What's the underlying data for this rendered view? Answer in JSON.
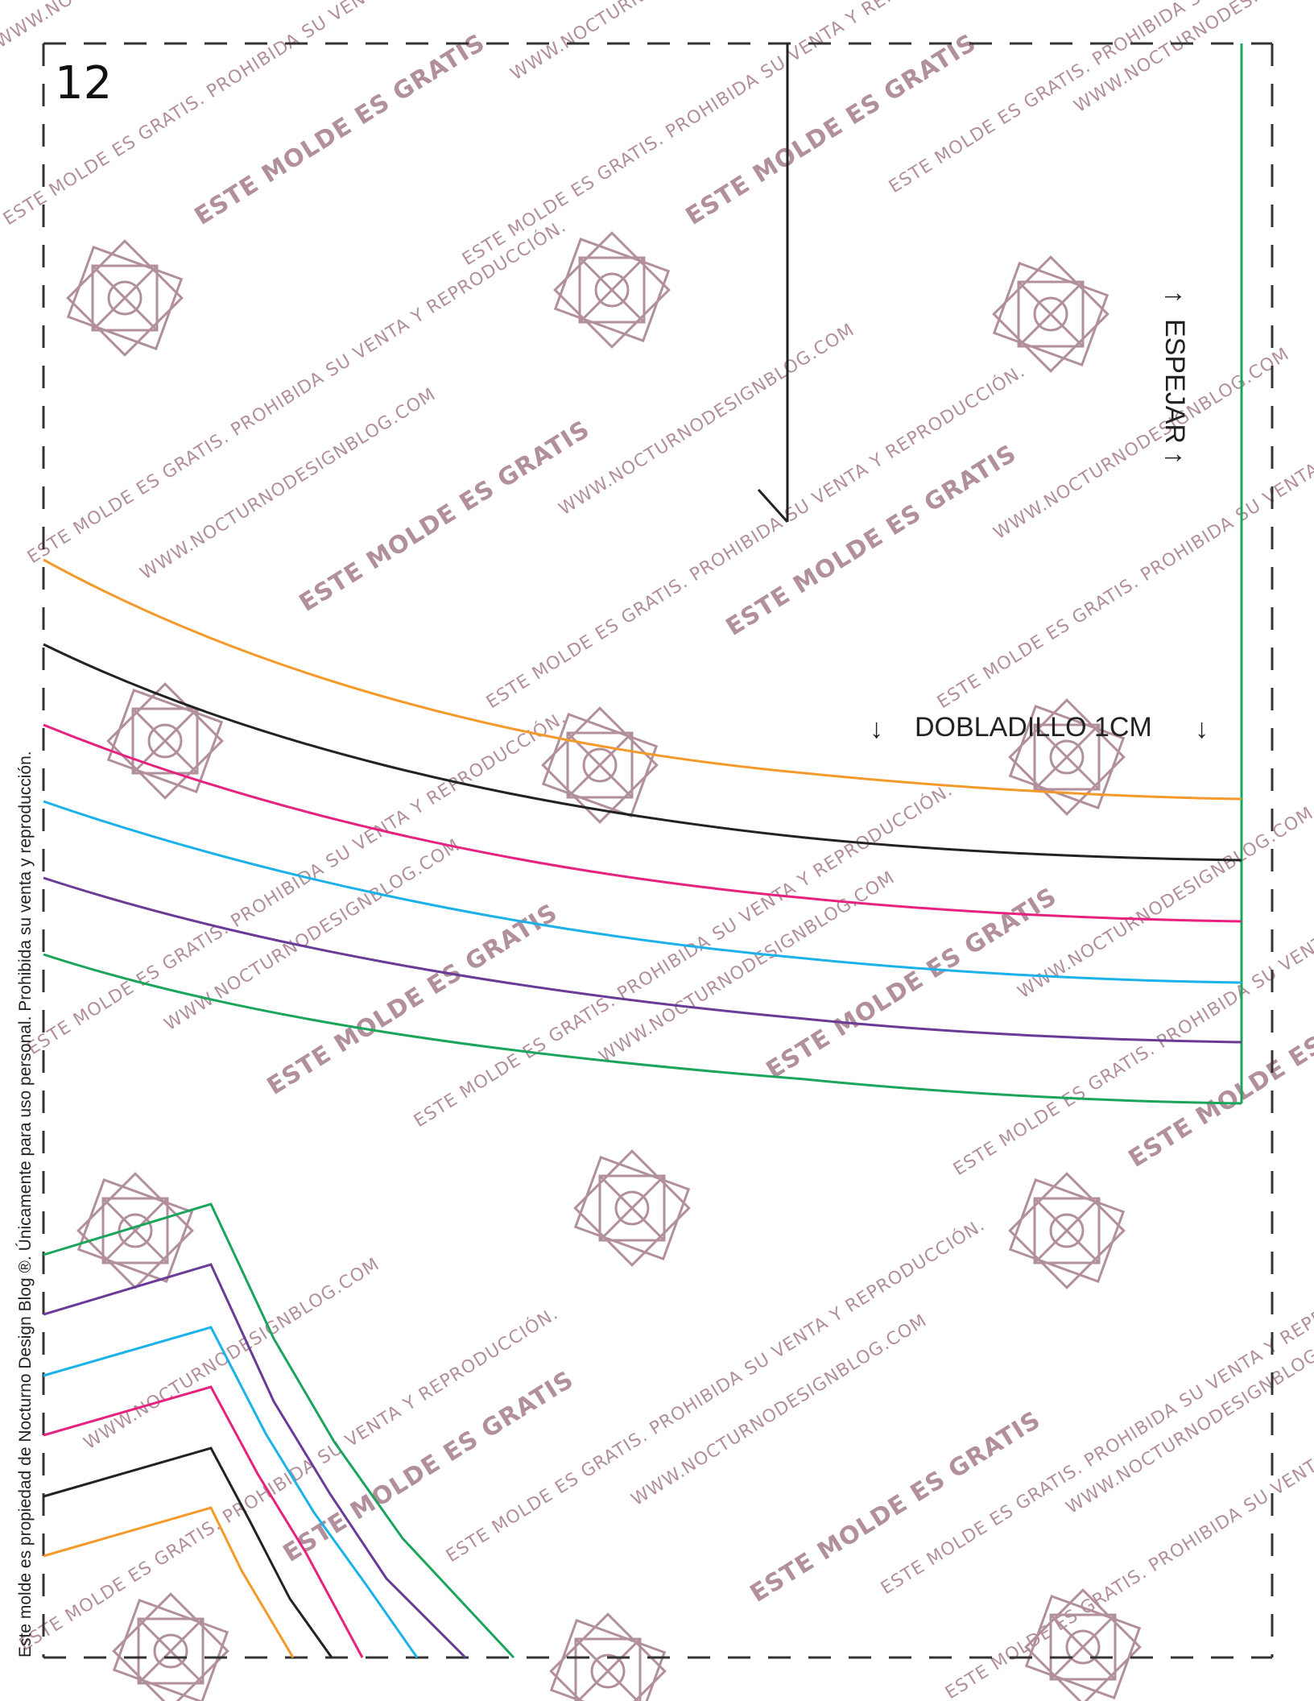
{
  "page_number": "12",
  "labels": {
    "mirror": "ESPEJAR",
    "hem": "DOBLADILLO 1CM",
    "arrow_up": "↑",
    "arrow_down": "↓"
  },
  "side_notice": "Este molde es propiedad de Nocturno Design Blog ®. Únicamente para uso personal. Prohibida su venta y reproducción.",
  "watermark": {
    "line_a": "ESTE MOLDE ES GRATIS",
    "line_b": "WWW.NOCTURNODESIGNBLOG.COM",
    "line_c": "ESTE MOLDE ES GRATIS. PROHIBIDA SU VENTA Y REPRODUCCIÓN."
  },
  "colors": {
    "orange": "#f39a2b",
    "black": "#222222",
    "magenta": "#e6217f",
    "cyan": "#1ab2e8",
    "purple": "#6a3a97",
    "green": "#1aa55a",
    "watermark": "#b28f9c"
  }
}
